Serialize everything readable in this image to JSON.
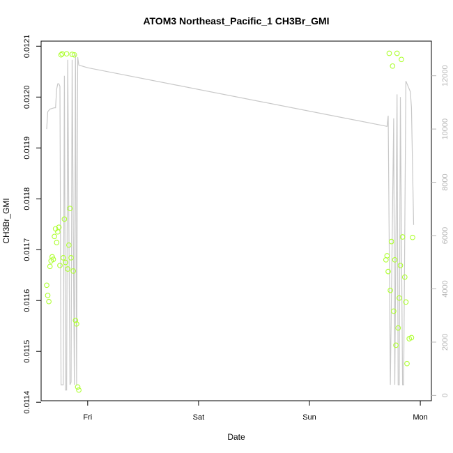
{
  "chart_data": {
    "type": "scatter",
    "title": "ATOM3 Northeast_Pacific_1 CH3Br_GMI",
    "xlabel": "Date",
    "ylabel": "CH3Br_GMI",
    "y2label": "",
    "x_tick_labels": [
      {
        "label": "Fri",
        "day": 1
      },
      {
        "label": "Sat",
        "day": 2
      },
      {
        "label": "Sun",
        "day": 3
      },
      {
        "label": "Mon",
        "day": 4
      }
    ],
    "xlim_days": [
      0.58,
      4.1
    ],
    "ylim": [
      0.011403,
      0.01211
    ],
    "y_ticks": [
      "0.0114",
      "0.0115",
      "0.0116",
      "0.0117",
      "0.0118",
      "0.0119",
      "0.0120",
      "0.0121"
    ],
    "y2lim": [
      -200,
      13300
    ],
    "y2_ticks": [
      "0",
      "2000",
      "4000",
      "6000",
      "8000",
      "10000",
      "12000"
    ],
    "grid": false,
    "colors": {
      "points": "#adff2f",
      "altitude_line": "#c8c8c8",
      "right_axis": "#b5b5b5"
    },
    "series": [
      {
        "kind": "points",
        "values": [
          [
            0.63,
            0.01163
          ],
          [
            0.64,
            0.01161
          ],
          [
            0.65,
            0.011598
          ],
          [
            0.66,
            0.011667
          ],
          [
            0.67,
            0.011678
          ],
          [
            0.68,
            0.011686
          ],
          [
            0.69,
            0.011681
          ],
          [
            0.7,
            0.011726
          ],
          [
            0.71,
            0.011741
          ],
          [
            0.72,
            0.011714
          ],
          [
            0.73,
            0.011735
          ],
          [
            0.74,
            0.011744
          ],
          [
            0.75,
            0.011669
          ],
          [
            0.76,
            0.012083
          ],
          [
            0.77,
            0.012085
          ],
          [
            0.78,
            0.011684
          ],
          [
            0.79,
            0.01176
          ],
          [
            0.8,
            0.011675
          ],
          [
            0.81,
            0.012085
          ],
          [
            0.82,
            0.011662
          ],
          [
            0.83,
            0.011709
          ],
          [
            0.84,
            0.011781
          ],
          [
            0.85,
            0.011684
          ],
          [
            0.86,
            0.012084
          ],
          [
            0.87,
            0.011658
          ],
          [
            0.88,
            0.012083
          ],
          [
            0.89,
            0.011561
          ],
          [
            0.9,
            0.011554
          ],
          [
            0.91,
            0.01143
          ],
          [
            0.92,
            0.011424
          ],
          [
            3.69,
            0.01168
          ],
          [
            3.7,
            0.011688
          ],
          [
            3.71,
            0.011657
          ],
          [
            3.72,
            0.012086
          ],
          [
            3.73,
            0.01162
          ],
          [
            3.74,
            0.011716
          ],
          [
            3.75,
            0.012061
          ],
          [
            3.76,
            0.011579
          ],
          [
            3.77,
            0.01168
          ],
          [
            3.78,
            0.011512
          ],
          [
            3.79,
            0.012086
          ],
          [
            3.8,
            0.011546
          ],
          [
            3.81,
            0.011605
          ],
          [
            3.82,
            0.011669
          ],
          [
            3.83,
            0.012074
          ],
          [
            3.84,
            0.011725
          ],
          [
            3.86,
            0.011646
          ],
          [
            3.87,
            0.011597
          ],
          [
            3.88,
            0.011476
          ],
          [
            3.9,
            0.011525
          ],
          [
            3.92,
            0.011527
          ],
          [
            3.93,
            0.011724
          ]
        ]
      },
      {
        "kind": "altitude_line",
        "axis": "right",
        "values": [
          [
            0.63,
            10000
          ],
          [
            0.64,
            10650
          ],
          [
            0.66,
            10750
          ],
          [
            0.7,
            10800
          ],
          [
            0.71,
            10800
          ],
          [
            0.72,
            11500
          ],
          [
            0.73,
            11700
          ],
          [
            0.74,
            11700
          ],
          [
            0.75,
            11600
          ],
          [
            0.76,
            400
          ],
          [
            0.78,
            400
          ],
          [
            0.79,
            12000
          ],
          [
            0.8,
            200
          ],
          [
            0.81,
            200
          ],
          [
            0.82,
            12600
          ],
          [
            0.84,
            400
          ],
          [
            0.85,
            500
          ],
          [
            0.86,
            12600
          ],
          [
            0.88,
            400
          ],
          [
            0.89,
            12800
          ],
          [
            0.9,
            400
          ],
          [
            0.91,
            12700
          ],
          [
            0.92,
            12400
          ],
          [
            1.0,
            12300
          ],
          [
            3.7,
            10100
          ],
          [
            3.71,
            10500
          ],
          [
            3.73,
            400
          ],
          [
            3.76,
            10400
          ],
          [
            3.77,
            400
          ],
          [
            3.79,
            11300
          ],
          [
            3.8,
            400
          ],
          [
            3.81,
            400
          ],
          [
            3.82,
            11200
          ],
          [
            3.84,
            400
          ],
          [
            3.85,
            400
          ],
          [
            3.87,
            11800
          ],
          [
            3.91,
            11400
          ],
          [
            3.92,
            10800
          ],
          [
            3.94,
            6400
          ]
        ]
      }
    ]
  }
}
